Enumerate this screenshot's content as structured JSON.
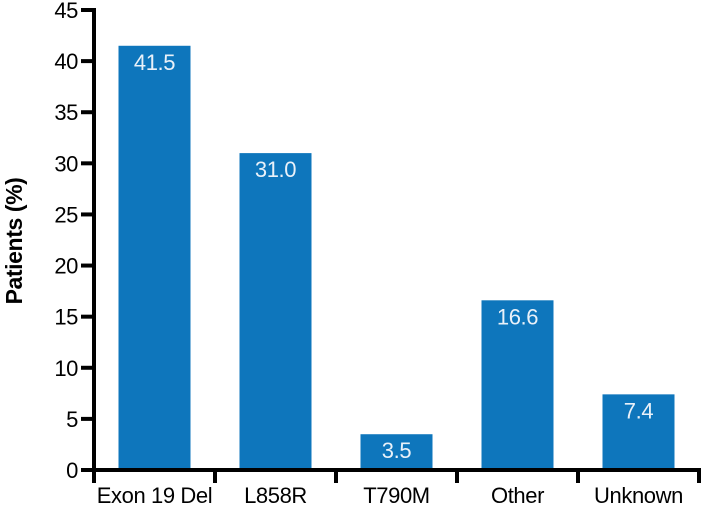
{
  "chart_data": {
    "type": "bar",
    "title": "",
    "categories": [
      "Exon 19 Del",
      "L858R",
      "T790M",
      "Other",
      "Unknown"
    ],
    "values": [
      41.5,
      31.0,
      3.5,
      16.6,
      7.4
    ],
    "bar_labels": [
      "41.5",
      "31.0",
      "3.5",
      "16.6",
      "7.4"
    ],
    "ylabel": "Patients (%)",
    "xlabel": "",
    "ylim": [
      0,
      45
    ],
    "yticks": [
      0,
      5,
      10,
      15,
      20,
      25,
      30,
      35,
      40,
      45
    ],
    "grid": false,
    "legend": "none",
    "bar_label_position": "inside-top",
    "colors": {
      "bar": "#0e76bc",
      "bar_label_text": "#e9f1f9",
      "axis": "#000000",
      "tick_label_text": "#000000",
      "background": "#ffffff"
    }
  }
}
